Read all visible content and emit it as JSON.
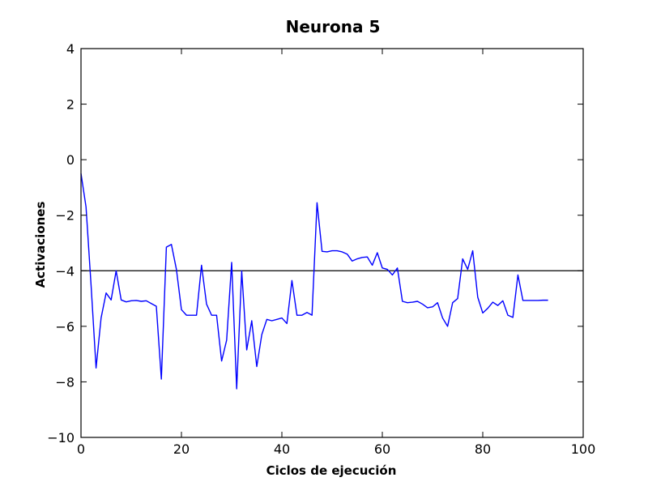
{
  "chart_data": {
    "type": "line",
    "title": "Neurona 5",
    "xlabel": "Ciclos de ejecución",
    "ylabel": "Activaciones",
    "xlim": [
      0,
      100
    ],
    "ylim": [
      -10,
      4
    ],
    "xticks": [
      0,
      20,
      40,
      60,
      80,
      100
    ],
    "yticks": [
      4,
      2,
      0,
      -2,
      -4,
      -6,
      -8,
      -10
    ],
    "xtick_labels": [
      "0",
      "20",
      "40",
      "60",
      "80",
      "100"
    ],
    "ytick_labels": [
      "4",
      "2",
      "0",
      "−2",
      "−4",
      "−6",
      "−8",
      "−10"
    ],
    "grid": false,
    "series": [
      {
        "color": "#0000ff",
        "x": [
          0,
          1,
          2,
          3,
          4,
          5,
          6,
          7,
          8,
          9,
          10,
          11,
          12,
          13,
          14,
          15,
          16,
          17,
          18,
          19,
          20,
          21,
          22,
          23,
          24,
          25,
          26,
          27,
          28,
          29,
          30,
          31,
          32,
          33,
          34,
          35,
          36,
          37,
          38,
          39,
          40,
          41,
          42,
          43,
          44,
          45,
          46,
          47,
          48,
          49,
          50,
          51,
          52,
          53,
          54,
          55,
          56,
          57,
          58,
          59,
          60,
          61,
          62,
          63,
          64,
          65,
          66,
          67,
          68,
          69,
          70,
          71,
          72,
          73,
          74,
          75,
          76,
          77,
          78,
          79,
          80,
          81,
          82,
          83,
          84,
          85,
          86,
          87,
          88,
          89,
          90,
          91,
          92,
          93
        ],
        "values": [
          -0.5,
          -1.7,
          -4.5,
          -7.5,
          -5.7,
          -4.8,
          -5.05,
          -4.0,
          -5.05,
          -5.12,
          -5.08,
          -5.07,
          -5.1,
          -5.08,
          -5.18,
          -5.28,
          -7.9,
          -3.15,
          -3.05,
          -3.95,
          -5.4,
          -5.6,
          -5.6,
          -5.6,
          -3.8,
          -5.2,
          -5.6,
          -5.6,
          -7.25,
          -6.5,
          -3.7,
          -8.25,
          -4.0,
          -6.85,
          -5.8,
          -7.45,
          -6.3,
          -5.75,
          -5.8,
          -5.75,
          -5.7,
          -5.9,
          -4.35,
          -5.6,
          -5.6,
          -5.5,
          -5.6,
          -1.55,
          -3.3,
          -3.32,
          -3.28,
          -3.28,
          -3.32,
          -3.4,
          -3.65,
          -3.57,
          -3.52,
          -3.5,
          -3.8,
          -3.35,
          -3.9,
          -3.95,
          -4.15,
          -3.9,
          -5.1,
          -5.15,
          -5.13,
          -5.1,
          -5.2,
          -5.33,
          -5.3,
          -5.15,
          -5.7,
          -6.0,
          -5.15,
          -5.0,
          -3.57,
          -3.95,
          -3.28,
          -4.95,
          -5.52,
          -5.35,
          -5.13,
          -5.25,
          -5.08,
          -5.6,
          -5.68,
          -4.15,
          -5.07,
          -5.07,
          -5.07,
          -5.07,
          -5.06,
          -5.06
        ]
      }
    ],
    "reference_lines": [
      {
        "y": -4,
        "color": "#000000"
      }
    ]
  }
}
